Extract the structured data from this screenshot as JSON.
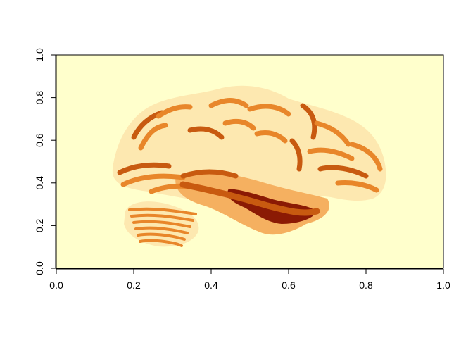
{
  "chart_data": {
    "type": "heatmap",
    "title": "",
    "xlabel": "",
    "ylabel": "",
    "xlim": [
      0,
      1
    ],
    "ylim": [
      0,
      1
    ],
    "x_ticks": [
      0.0,
      0.2,
      0.4,
      0.6,
      0.8,
      1.0
    ],
    "x_tick_labels": [
      "0.0",
      "0.2",
      "0.4",
      "0.6",
      "0.8",
      "1.0"
    ],
    "y_ticks": [
      0.0,
      0.2,
      0.4,
      0.6,
      0.8,
      1.0
    ],
    "y_tick_labels": [
      "0.0",
      "0.2",
      "0.4",
      "0.6",
      "0.8",
      "1.0"
    ],
    "colormap": "heat (light yellow to dark red)",
    "colors": {
      "background": "#ffffcc",
      "light": "#fde8b0",
      "mid": "#e8862a",
      "strong": "#c85a10",
      "dark": "#8b1a04"
    },
    "grid": false,
    "legend": "none"
  }
}
